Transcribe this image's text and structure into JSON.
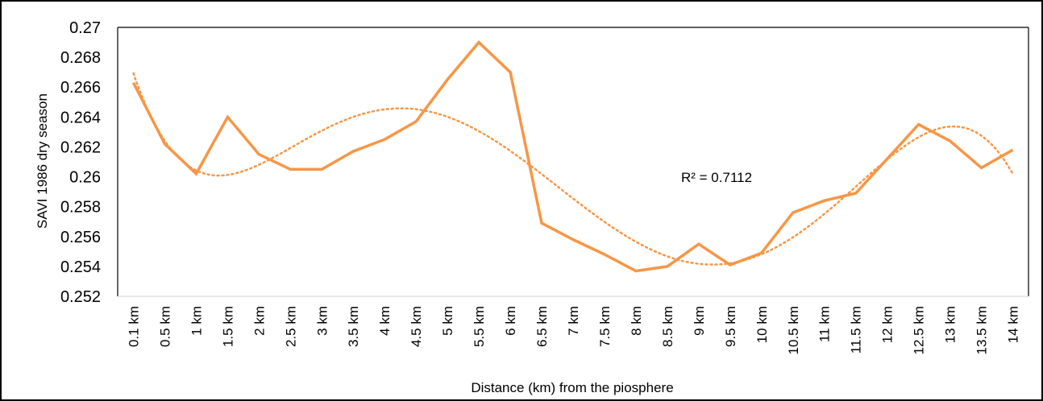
{
  "chart_data": {
    "type": "line",
    "title": "",
    "xlabel": "Distance (km) from the piosphere",
    "ylabel": "SAVI 1986 dry season",
    "ylim": [
      0.252,
      0.27
    ],
    "yticks": [
      "0.252",
      "0.254",
      "0.256",
      "0.258",
      "0.26",
      "0.262",
      "0.264",
      "0.266",
      "0.268",
      "0.27"
    ],
    "categories": [
      "0.1 km",
      "0.5 km",
      "1 km",
      "1.5 km",
      "2 km",
      "2.5 km",
      "3 km",
      "3.5 km",
      "4 km",
      "4.5 km",
      "5 km",
      "5.5 km",
      "6 km",
      "6.5 km",
      "7 km",
      "7.5 km",
      "8 km",
      "8.5 km",
      "9 km",
      "9.5 km",
      "10 km",
      "10.5 km",
      "11 km",
      "11.5 km",
      "12 km",
      "12.5 km",
      "13 km",
      "13.5 km",
      "14 km"
    ],
    "series": [
      {
        "name": "SAVI 1986 dry season",
        "color": "#F79646",
        "values": [
          0.2663,
          0.2622,
          0.2602,
          0.264,
          0.2615,
          0.2605,
          0.2605,
          0.2617,
          0.2625,
          0.2637,
          0.2665,
          0.269,
          0.267,
          0.2569,
          0.2558,
          0.2548,
          0.2537,
          0.254,
          0.2555,
          0.2541,
          0.2549,
          0.2576,
          0.2584,
          0.2589,
          0.2612,
          0.2635,
          0.2624,
          0.2606,
          0.2618
        ]
      }
    ],
    "trendline": {
      "type": "polynomial",
      "order": 6,
      "style": "dotted",
      "r2_label": "R² = 0.7112"
    },
    "grid": false,
    "legend": "none"
  }
}
